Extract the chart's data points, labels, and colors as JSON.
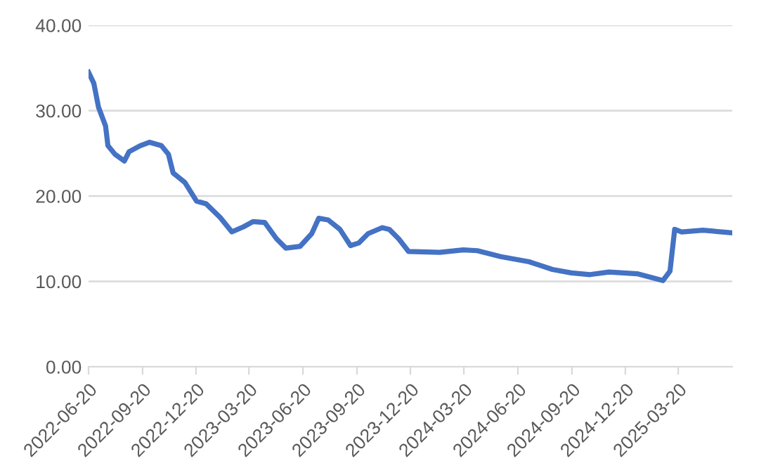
{
  "chart_data": {
    "type": "line",
    "grid": "y",
    "marker": "none",
    "line_style": "solid",
    "xlim": [
      "2022-06-20",
      "2025-06-20"
    ],
    "xticks": [
      "2022-06-20",
      "2022-09-20",
      "2022-12-20",
      "2023-03-20",
      "2023-06-20",
      "2023-09-20",
      "2023-12-20",
      "2024-03-20",
      "2024-06-20",
      "2024-09-20",
      "2024-12-20",
      "2025-03-20"
    ],
    "ylim": [
      0,
      40
    ],
    "yticks": [
      {
        "value": 0,
        "label": "0.00"
      },
      {
        "value": 10,
        "label": "10.00"
      },
      {
        "value": 20,
        "label": "20.00"
      },
      {
        "value": 30,
        "label": "30.00"
      },
      {
        "value": 40,
        "label": "40.00"
      }
    ],
    "series": [
      {
        "color": "#4472c4",
        "x": [
          "2022-06-20",
          "2022-06-29",
          "2022-07-07",
          "2022-07-19",
          "2022-07-23",
          "2022-08-04",
          "2022-08-20",
          "2022-08-28",
          "2022-09-16",
          "2022-10-02",
          "2022-10-22",
          "2022-11-03",
          "2022-11-11",
          "2022-12-01",
          "2022-12-21",
          "2023-01-06",
          "2023-01-30",
          "2023-02-19",
          "2023-03-11",
          "2023-03-27",
          "2023-04-16",
          "2023-05-06",
          "2023-05-22",
          "2023-06-15",
          "2023-07-05",
          "2023-07-17",
          "2023-08-02",
          "2023-08-22",
          "2023-09-09",
          "2023-09-23",
          "2023-10-09",
          "2023-11-02",
          "2023-11-14",
          "2023-11-30",
          "2023-12-17",
          "2024-02-08",
          "2024-03-19",
          "2024-04-12",
          "2024-05-22",
          "2024-07-09",
          "2024-08-18",
          "2024-09-19",
          "2024-10-21",
          "2024-11-22",
          "2025-01-09",
          "2025-02-22",
          "2025-03-06",
          "2025-03-14",
          "2025-03-26",
          "2025-05-01",
          "2025-06-18"
        ],
        "values": [
          34.5,
          33.2,
          30.4,
          28.2,
          25.9,
          24.9,
          24.1,
          25.2,
          25.9,
          26.3,
          25.9,
          24.9,
          22.7,
          21.6,
          19.4,
          19.1,
          17.5,
          15.8,
          16.4,
          17.0,
          16.9,
          15.0,
          13.9,
          14.1,
          15.6,
          17.4,
          17.2,
          16.1,
          14.2,
          14.5,
          15.6,
          16.3,
          16.1,
          15.0,
          13.5,
          13.4,
          13.7,
          13.6,
          12.9,
          12.3,
          11.4,
          11.0,
          10.8,
          11.1,
          10.9,
          10.1,
          11.2,
          16.1,
          15.8,
          16.0,
          15.7
        ]
      }
    ]
  }
}
